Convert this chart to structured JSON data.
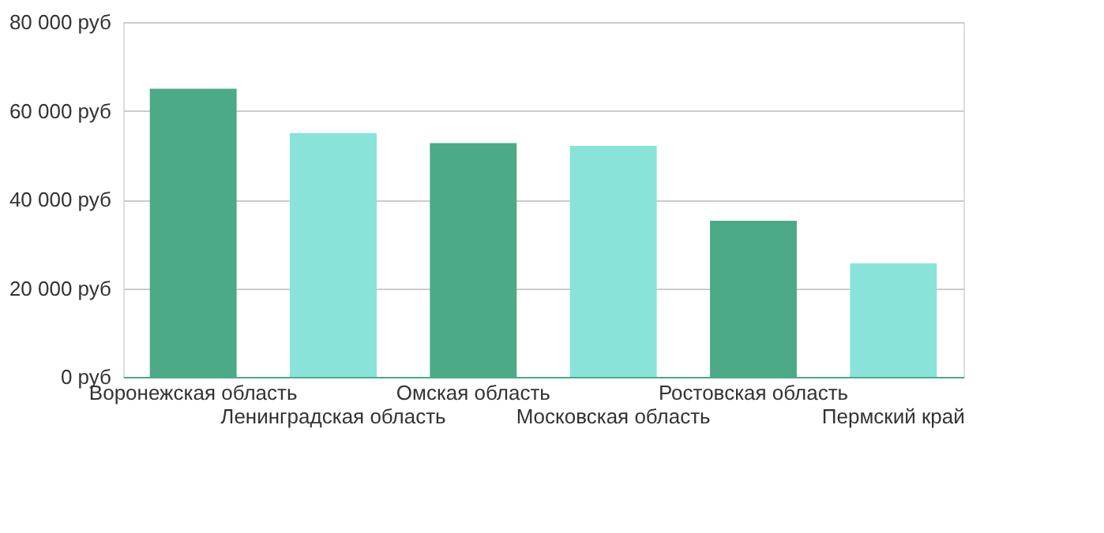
{
  "chart_data": {
    "type": "bar",
    "categories": [
      "Воронежская область",
      "Ленинградская область",
      "Омская область",
      "Московская область",
      "Ростовская область",
      "Пермский край"
    ],
    "values": [
      65000,
      55000,
      52700,
      52100,
      35200,
      25600
    ],
    "colors": [
      "#4caa87",
      "#8ae3d9",
      "#4caa87",
      "#8ae3d9",
      "#4caa87",
      "#8ae3d9"
    ],
    "ylim": [
      0,
      80000
    ],
    "yticks": [
      {
        "value": 0,
        "label": "0 руб"
      },
      {
        "value": 20000,
        "label": "20 000 руб"
      },
      {
        "value": 40000,
        "label": "40 000 руб"
      },
      {
        "value": 60000,
        "label": "60 000 руб"
      },
      {
        "value": 80000,
        "label": "80 000 руб"
      }
    ],
    "grid": "y"
  }
}
